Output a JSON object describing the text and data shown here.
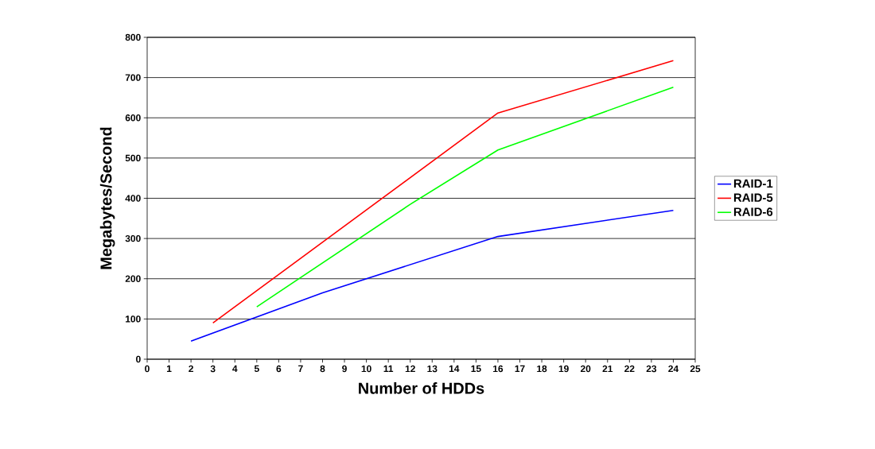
{
  "chart_data": {
    "type": "line",
    "xlabel": "Number of HDDs",
    "ylabel": "Megabytes/Second",
    "xlim": [
      0,
      25
    ],
    "xticks": [
      0,
      1,
      2,
      3,
      4,
      5,
      6,
      7,
      8,
      9,
      10,
      11,
      12,
      13,
      14,
      15,
      16,
      17,
      18,
      19,
      20,
      21,
      22,
      23,
      24,
      25
    ],
    "ylim": [
      0,
      800
    ],
    "yticks": [
      0,
      100,
      200,
      300,
      400,
      500,
      600,
      700,
      800
    ],
    "grid": "y",
    "legend": "right",
    "marker": "none",
    "line_style": "solid",
    "series": [
      {
        "name": "RAID-1",
        "color": "#0000ff",
        "x": [
          2,
          8,
          16,
          24
        ],
        "values": [
          45,
          165,
          305,
          370
        ]
      },
      {
        "name": "RAID-5",
        "color": "#ff0000",
        "x": [
          3,
          16,
          24
        ],
        "values": [
          90,
          612,
          742
        ]
      },
      {
        "name": "RAID-6",
        "color": "#00ff00",
        "x": [
          5,
          12,
          16,
          24
        ],
        "values": [
          130,
          385,
          520,
          676
        ]
      }
    ]
  }
}
